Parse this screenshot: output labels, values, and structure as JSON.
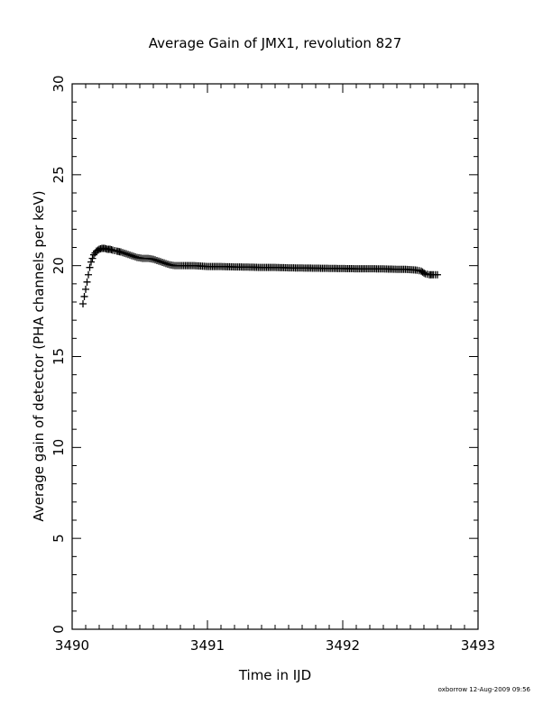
{
  "chart_data": {
    "type": "scatter",
    "title": "Average Gain of JMX1, revolution 827",
    "xlabel": "Time in IJD",
    "ylabel": "Average gain of detector (PHA channels per keV)",
    "xlim": [
      3490,
      3493
    ],
    "ylim": [
      0,
      30
    ],
    "x_ticks": [
      "3490",
      "3491",
      "3492",
      "3493"
    ],
    "y_ticks": [
      "0",
      "5",
      "10",
      "15",
      "20",
      "25",
      "30"
    ],
    "marker": "plus",
    "grid": false,
    "footer": "oxborrow 12-Aug-2009 09:56",
    "series": [
      {
        "x": [
          3490.08,
          3490.09,
          3490.1,
          3490.11,
          3490.12,
          3490.13,
          3490.14,
          3490.15,
          3490.16,
          3490.17,
          3490.18,
          3490.19,
          3490.2,
          3490.22,
          3490.24,
          3490.26,
          3490.28,
          3490.3,
          3490.33,
          3490.36,
          3490.4,
          3490.44,
          3490.48,
          3490.52,
          3490.56,
          3490.6,
          3490.64,
          3490.68,
          3490.72,
          3490.76,
          3490.8,
          3490.85,
          3490.9,
          3490.95,
          3491.0,
          3491.1,
          3491.2,
          3491.3,
          3491.4,
          3491.5,
          3491.6,
          3491.7,
          3491.8,
          3491.9,
          3492.0,
          3492.1,
          3492.2,
          3492.3,
          3492.4,
          3492.45,
          3492.5,
          3492.55,
          3492.58,
          3492.61,
          3492.64,
          3492.67,
          3492.7
        ],
        "y": [
          17.9,
          18.3,
          18.7,
          19.1,
          19.5,
          19.9,
          20.2,
          20.4,
          20.6,
          20.7,
          20.8,
          20.85,
          20.9,
          20.95,
          20.95,
          20.9,
          20.9,
          20.85,
          20.8,
          20.75,
          20.65,
          20.55,
          20.45,
          20.4,
          20.4,
          20.35,
          20.25,
          20.15,
          20.05,
          20.0,
          20.0,
          20.0,
          20.0,
          19.98,
          19.95,
          19.95,
          19.93,
          19.92,
          19.9,
          19.9,
          19.88,
          19.87,
          19.86,
          19.85,
          19.84,
          19.83,
          19.83,
          19.82,
          19.8,
          19.8,
          19.78,
          19.75,
          19.7,
          19.55,
          19.5,
          19.5,
          19.5
        ]
      }
    ]
  }
}
